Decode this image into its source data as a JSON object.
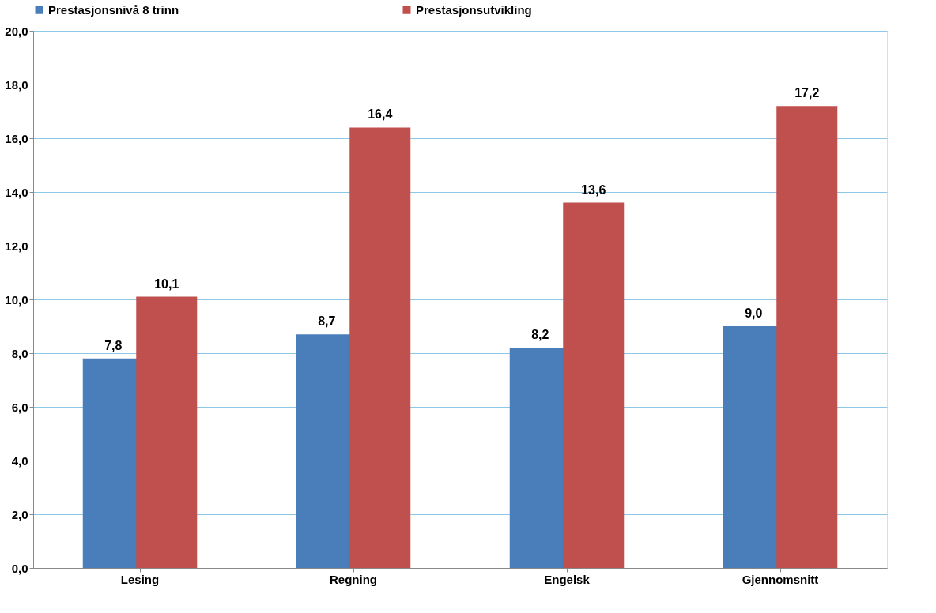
{
  "chart_data": {
    "type": "bar",
    "categories": [
      "Lesing",
      "Regning",
      "Engelsk",
      "Gjennomsnitt"
    ],
    "series": [
      {
        "name": "Prestasjonsnivå 8 trinn",
        "color": "#4a7ebb",
        "values": [
          7.8,
          8.7,
          8.2,
          9.0
        ],
        "value_labels": [
          "7,8",
          "8,7",
          "8,2",
          "9,0"
        ]
      },
      {
        "name": "Prestasjonsutvikling",
        "color": "#c0504d",
        "values": [
          10.1,
          16.4,
          13.6,
          17.2
        ],
        "value_labels": [
          "10,1",
          "16,4",
          "13,6",
          "17,2"
        ]
      }
    ],
    "ylim": [
      0,
      20
    ],
    "yticks": [
      {
        "value": 0,
        "label": "0,0"
      },
      {
        "value": 2,
        "label": "2,0"
      },
      {
        "value": 4,
        "label": "4,0"
      },
      {
        "value": 6,
        "label": "6,0"
      },
      {
        "value": 8,
        "label": "8,0"
      },
      {
        "value": 10,
        "label": "10,0"
      },
      {
        "value": 12,
        "label": "12,0"
      },
      {
        "value": 14,
        "label": "14,0"
      },
      {
        "value": 16,
        "label": "16,0"
      },
      {
        "value": 18,
        "label": "18,0"
      },
      {
        "value": 20,
        "label": "20,0"
      }
    ],
    "grid": "y",
    "legend": "top"
  }
}
